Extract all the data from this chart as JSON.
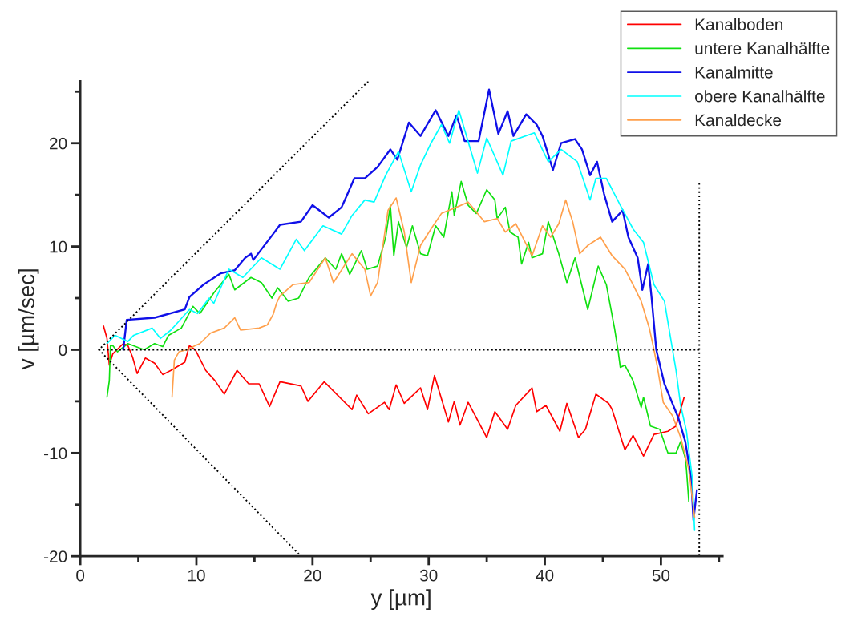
{
  "chart_data": {
    "type": "line",
    "xlabel": "y [µm]",
    "ylabel": "v [µm/sec]",
    "xlim": [
      0,
      55.3
    ],
    "ylim": [
      -20,
      26
    ],
    "xticks": [
      0,
      {
        "value": 5,
        "label": null
      },
      10,
      {
        "value": 15,
        "label": null
      },
      20,
      {
        "value": 25,
        "label": null
      },
      30,
      {
        "value": 35,
        "label": null
      },
      40,
      {
        "value": 45,
        "label": null
      },
      50,
      {
        "value": 55,
        "label": null
      }
    ],
    "yticks": [
      -20,
      {
        "value": -15,
        "label": null
      },
      -10,
      {
        "value": -5,
        "label": null
      },
      0,
      {
        "value": 5,
        "label": null
      },
      10,
      {
        "value": 15,
        "label": null
      },
      20,
      {
        "value": 25,
        "label": null
      }
    ],
    "grid": false,
    "legend": "top right",
    "marker": "none",
    "series": [
      {
        "name": "Kanalboden",
        "color": "#ff0000",
        "line_style": "solid",
        "x": [
          2.0,
          2.3,
          2.5,
          2.8,
          3.7,
          4.1,
          4.5,
          4.9,
          5.6,
          6.4,
          7.1,
          7.8,
          9.0,
          9.4,
          9.9,
          10.8,
          11.6,
          12.4,
          13.5,
          14.5,
          15.4,
          16.3,
          17.2,
          19.0,
          19.6,
          21.0,
          23.4,
          23.8,
          24.8,
          26.2,
          26.6,
          27.2,
          27.9,
          29.3,
          29.9,
          30.5,
          31.7,
          32.2,
          32.7,
          33.4,
          35.0,
          35.7,
          36.8,
          37.5,
          38.9,
          39.3,
          40.1,
          41.3,
          41.9,
          42.9,
          43.5,
          44.4,
          45.5,
          45.8,
          46.9,
          47.6,
          48.5,
          49.4,
          50.6,
          51.3,
          52.0
        ],
        "values": [
          2.3,
          1.1,
          -1.5,
          -0.4,
          0.6,
          0.4,
          -0.7,
          -2.3,
          -0.8,
          -1.3,
          -2.4,
          -2.0,
          -1.2,
          0.4,
          0,
          -2.0,
          -3.0,
          -4.3,
          -2.0,
          -3.3,
          -3.3,
          -5.5,
          -3.1,
          -3.5,
          -5.0,
          -3.1,
          -5.8,
          -4.4,
          -6.2,
          -5.1,
          -5.8,
          -3.4,
          -5.2,
          -3.7,
          -5.8,
          -2.5,
          -7.0,
          -5.0,
          -7.3,
          -5.1,
          -8.5,
          -6.0,
          -7.7,
          -5.4,
          -3.7,
          -6.0,
          -5.4,
          -7.9,
          -5.2,
          -8.5,
          -7.7,
          -4.3,
          -5.2,
          -5.8,
          -9.7,
          -8.3,
          -10.3,
          -8.2,
          -7.9,
          -7.4,
          -4.6
        ]
      },
      {
        "name": "untere Kanalhälfte",
        "color": "#10e010",
        "line_style": "solid",
        "x": [
          2.3,
          2.5,
          2.6,
          2.8,
          3.2,
          4.1,
          5.5,
          6.4,
          7.1,
          7.6,
          8.7,
          9.7,
          10.3,
          11.5,
          12.8,
          13.3,
          14.7,
          15.6,
          16.5,
          17.0,
          17.9,
          18.8,
          19.7,
          21.1,
          22.0,
          22.5,
          23.2,
          24.2,
          24.7,
          25.6,
          26.3,
          26.7,
          27.0,
          27.4,
          28.1,
          28.6,
          29.3,
          29.9,
          30.6,
          31.3,
          32.0,
          32.2,
          32.8,
          33.4,
          34.1,
          35.0,
          35.7,
          35.9,
          36.6,
          37.0,
          37.7,
          38.0,
          38.6,
          38.9,
          39.8,
          40.3,
          41.2,
          41.9,
          42.6,
          43.7,
          44.6,
          45.3,
          46.0,
          46.3,
          46.5,
          46.9,
          47.6,
          48.3,
          48.5,
          49.1,
          49.9,
          50.6,
          51.3,
          51.7,
          52.1,
          52.2,
          52.4
        ],
        "values": [
          -4.6,
          -3.0,
          0.4,
          0.4,
          -0.2,
          0.6,
          0,
          0.6,
          0.3,
          1.4,
          2.1,
          4.2,
          3.5,
          5.5,
          7.3,
          5.8,
          7.0,
          6.5,
          5.0,
          6.0,
          4.7,
          5.0,
          7.0,
          8.9,
          7.8,
          9.3,
          7.3,
          9.6,
          7.8,
          8.1,
          10.9,
          14.0,
          9.1,
          12.4,
          9.9,
          12.0,
          9.3,
          9.1,
          12.0,
          10.9,
          15.3,
          13.0,
          16.3,
          14.0,
          13.2,
          15.5,
          14.5,
          12.7,
          13.8,
          11.4,
          10.9,
          8.3,
          10.4,
          8.9,
          9.3,
          12.4,
          9.3,
          6.5,
          8.9,
          3.9,
          8.1,
          6.3,
          2.1,
          0,
          -1.7,
          -1.5,
          -3.0,
          -5.6,
          -4.6,
          -7.4,
          -7.7,
          -10.0,
          -10.0,
          -8.9,
          -10.5,
          -11.6,
          -14.7
        ]
      },
      {
        "name": "Kanalmitte",
        "color": "#1010e8",
        "line_style": "solid",
        "x": [
          3.7,
          4.0,
          6.4,
          9.0,
          9.4,
          10.6,
          12.1,
          13.3,
          14.2,
          14.7,
          14.9,
          16.6,
          17.2,
          19.0,
          20.0,
          21.4,
          22.5,
          22.9,
          23.6,
          24.5,
          25.6,
          26.7,
          27.3,
          28.3,
          29.3,
          30.6,
          31.7,
          32.4,
          33.1,
          34.3,
          35.2,
          36.0,
          36.8,
          37.3,
          38.4,
          39.3,
          39.8,
          40.7,
          41.4,
          42.6,
          43.2,
          43.9,
          44.5,
          45.1,
          45.8,
          46.7,
          47.2,
          48.0,
          48.4,
          48.9,
          49.2,
          49.6,
          50.3,
          51.5,
          52.1,
          52.6,
          52.8,
          53.1
        ],
        "values": [
          0,
          2.9,
          3.1,
          3.9,
          5.1,
          6.3,
          7.4,
          7.7,
          8.9,
          9.3,
          8.7,
          11.2,
          12.1,
          12.4,
          14.0,
          12.8,
          13.8,
          14.8,
          16.6,
          16.6,
          17.7,
          19.4,
          18.4,
          22.0,
          20.7,
          23.2,
          20.7,
          22.7,
          20.2,
          20.2,
          25.2,
          20.9,
          23.1,
          20.7,
          22.8,
          21.8,
          20.7,
          17.4,
          20.0,
          20.4,
          19.4,
          16.9,
          18.2,
          15.1,
          12.4,
          13.5,
          10.9,
          8.9,
          5.8,
          8.3,
          5.0,
          0,
          -3.3,
          -6.6,
          -8.9,
          -12.4,
          -16.5,
          -13.6
        ]
      },
      {
        "name": "obere Kanalhälfte",
        "color": "#00ffff",
        "line_style": "solid",
        "x": [
          2.3,
          3.0,
          4.1,
          4.6,
          6.2,
          6.9,
          7.8,
          9.4,
          10.1,
          11.1,
          11.5,
          12.8,
          14.0,
          15.6,
          17.2,
          18.6,
          19.3,
          20.9,
          22.5,
          23.4,
          24.5,
          25.3,
          26.3,
          27.4,
          28.5,
          29.3,
          30.2,
          31.1,
          31.8,
          32.6,
          33.1,
          34.2,
          35.0,
          36.4,
          37.1,
          39.1,
          40.3,
          41.4,
          42.8,
          43.9,
          44.4,
          45.3,
          46.5,
          47.6,
          48.5,
          49.4,
          50.3,
          51.0,
          51.3,
          51.7,
          52.2,
          52.7,
          52.9
        ],
        "values": [
          0.6,
          1.4,
          0.8,
          1.4,
          2.1,
          1.1,
          1.9,
          3.9,
          3.5,
          5.0,
          4.5,
          7.8,
          7.0,
          8.9,
          7.8,
          10.7,
          9.6,
          12.0,
          11.2,
          13.0,
          14.5,
          14.3,
          16.9,
          19.2,
          15.3,
          17.9,
          20.0,
          21.8,
          20.0,
          23.2,
          21.3,
          17.1,
          20.5,
          16.9,
          20.2,
          21.0,
          18.2,
          19.4,
          18.2,
          14.5,
          16.6,
          16.6,
          14.0,
          11.7,
          10.4,
          6.3,
          4.7,
          0,
          -2.0,
          -5.4,
          -7.9,
          -12.4,
          -17.5
        ]
      },
      {
        "name": "Kanaldecke",
        "color": "#ffa04c",
        "line_style": "solid",
        "x": [
          7.9,
          8.1,
          8.5,
          9.2,
          9.9,
          10.3,
          11.2,
          12.4,
          13.3,
          13.8,
          15.4,
          16.1,
          16.6,
          16.9,
          17.2,
          18.3,
          19.7,
          21.1,
          21.8,
          23.4,
          24.5,
          25.0,
          25.6,
          26.5,
          27.2,
          27.9,
          28.5,
          29.3,
          30.2,
          31.1,
          32.4,
          33.4,
          34.8,
          35.9,
          36.6,
          37.5,
          38.9,
          39.8,
          40.5,
          41.2,
          41.8,
          42.4,
          43.0,
          43.7,
          44.8,
          45.8,
          46.9,
          47.6,
          48.3,
          49.0,
          49.4,
          49.7,
          50.2,
          51.0,
          51.7,
          52.4,
          52.9
        ],
        "values": [
          -4.6,
          -1.0,
          -0.2,
          0,
          0.4,
          0.6,
          1.6,
          2.1,
          3.1,
          1.9,
          2.1,
          2.4,
          3.4,
          4.5,
          5.2,
          6.3,
          6.5,
          8.9,
          6.5,
          9.3,
          7.8,
          5.2,
          6.5,
          13.5,
          14.7,
          11.4,
          6.5,
          10.1,
          11.7,
          13.2,
          13.8,
          14.3,
          12.4,
          12.7,
          11.4,
          12.2,
          9.1,
          12.0,
          10.9,
          12.2,
          14.5,
          12.4,
          9.3,
          10.1,
          10.9,
          9.1,
          7.8,
          6.3,
          4.7,
          2.1,
          0,
          -1.7,
          -5.1,
          -6.4,
          -8.5,
          -11.6,
          -16.2
        ]
      },
      {
        "color": "#000000",
        "line_style": "dotted",
        "x": [
          24.8,
          1.6,
          19.0
        ],
        "values": [
          26,
          0,
          -20
        ]
      },
      {
        "color": "#000000",
        "line_style": "dotted",
        "x": [
          1.6,
          53.3
        ],
        "values": [
          0,
          0
        ]
      },
      {
        "color": "#000000",
        "line_style": "dotted",
        "x": [
          53.3,
          53.3
        ],
        "values": [
          -20,
          16.3
        ]
      }
    ]
  }
}
